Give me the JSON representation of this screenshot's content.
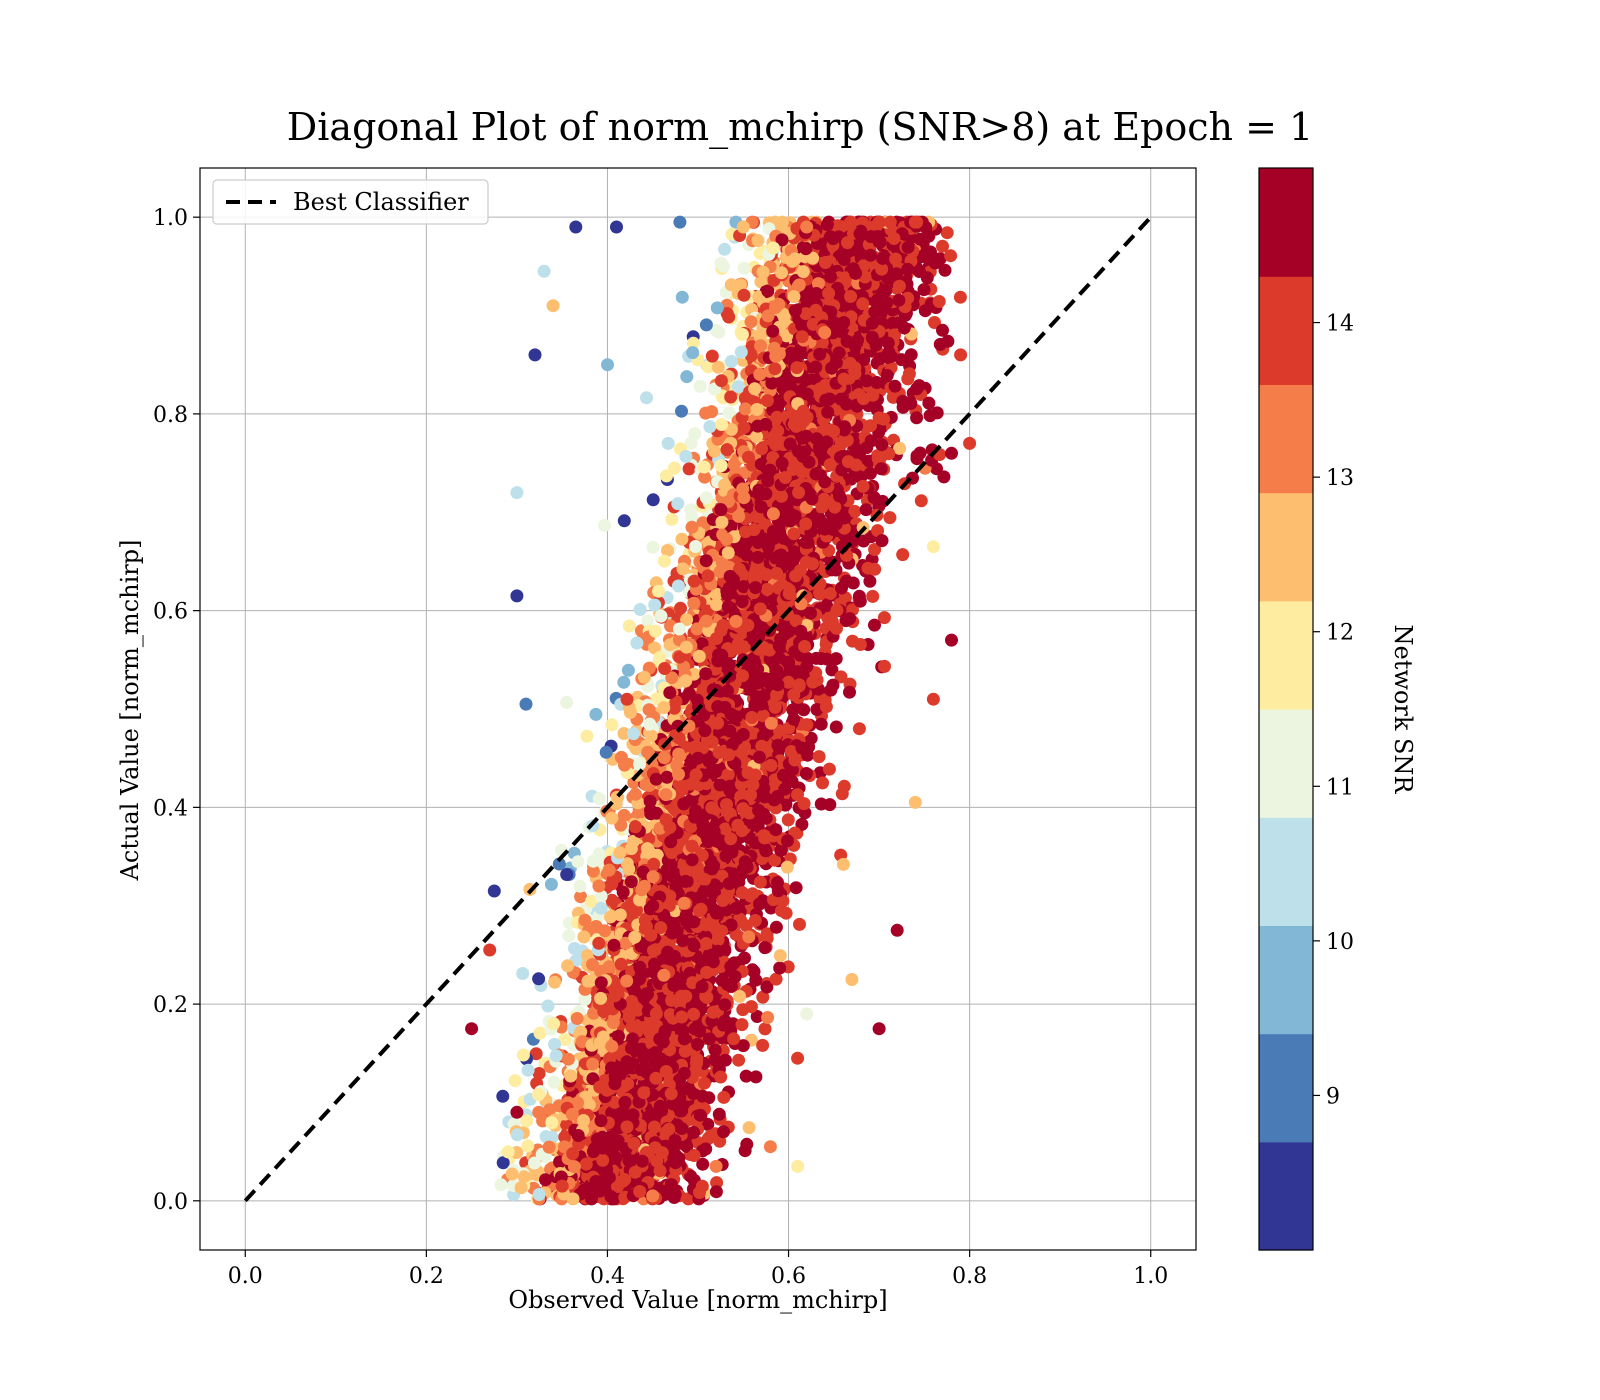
{
  "chart_data": {
    "type": "scatter",
    "title": "Diagonal Plot of norm_mchirp (SNR>8) at Epoch = 1",
    "xlabel": "Observed Value [norm_mchirp]",
    "ylabel": "Actual Value [norm_mchirp]",
    "xlim": [
      -0.05,
      1.05
    ],
    "ylim": [
      -0.05,
      1.05
    ],
    "xticks": [
      "0.0",
      "0.2",
      "0.4",
      "0.6",
      "0.8",
      "1.0"
    ],
    "yticks": [
      "0.0",
      "0.2",
      "0.4",
      "0.6",
      "0.8",
      "1.0"
    ],
    "grid": true,
    "legend": {
      "placement": "top-left",
      "entries": [
        {
          "label": "Best Classifier",
          "style": "dashed",
          "color": "#000000"
        }
      ]
    },
    "reference_line": {
      "x": [
        0.0,
        1.0
      ],
      "y": [
        0.0,
        1.0
      ],
      "style": "dashed",
      "color": "#000000"
    },
    "colorbar": {
      "label": "Network SNR",
      "range": [
        8,
        15
      ],
      "ticks": [
        "9",
        "10",
        "11",
        "12",
        "13",
        "14"
      ],
      "bins": [
        {
          "from": 8.0,
          "to": 8.7,
          "color": "#313695"
        },
        {
          "from": 8.7,
          "to": 9.4,
          "color": "#4a7bb7"
        },
        {
          "from": 9.4,
          "to": 10.1,
          "color": "#82b7d6"
        },
        {
          "from": 10.1,
          "to": 10.8,
          "color": "#bde0eb"
        },
        {
          "from": 10.8,
          "to": 11.5,
          "color": "#ecf5df"
        },
        {
          "from": 11.5,
          "to": 12.2,
          "color": "#feeca0"
        },
        {
          "from": 12.2,
          "to": 12.9,
          "color": "#fdbe70"
        },
        {
          "from": 12.9,
          "to": 13.6,
          "color": "#f57d4a"
        },
        {
          "from": 13.6,
          "to": 14.3,
          "color": "#dc3b2c"
        },
        {
          "from": 14.3,
          "to": 15.0,
          "color": "#a50026"
        }
      ]
    },
    "series": [
      {
        "points_estimated": [
          {
            "x": 0.25,
            "y": 0.175,
            "snr": 14.6
          },
          {
            "x": 0.275,
            "y": 0.315,
            "snr": 8.3
          },
          {
            "x": 0.3,
            "y": 0.72,
            "snr": 10.4
          },
          {
            "x": 0.3,
            "y": 0.615,
            "snr": 8.3
          },
          {
            "x": 0.31,
            "y": 0.505,
            "snr": 9.0
          },
          {
            "x": 0.32,
            "y": 0.86,
            "snr": 8.3
          },
          {
            "x": 0.33,
            "y": 0.945,
            "snr": 10.4
          },
          {
            "x": 0.34,
            "y": 0.91,
            "snr": 12.5
          },
          {
            "x": 0.365,
            "y": 0.99,
            "snr": 8.3
          },
          {
            "x": 0.41,
            "y": 0.99,
            "snr": 8.3
          },
          {
            "x": 0.48,
            "y": 0.995,
            "snr": 9.0
          },
          {
            "x": 0.55,
            "y": 0.99,
            "snr": 12.5
          },
          {
            "x": 0.62,
            "y": 0.99,
            "snr": 13.0
          },
          {
            "x": 0.7,
            "y": 0.975,
            "snr": 14.6
          },
          {
            "x": 0.75,
            "y": 0.96,
            "snr": 14.6
          },
          {
            "x": 0.77,
            "y": 0.885,
            "snr": 14.6
          },
          {
            "x": 0.79,
            "y": 0.86,
            "snr": 14.0
          },
          {
            "x": 0.8,
            "y": 0.77,
            "snr": 14.0
          },
          {
            "x": 0.78,
            "y": 0.76,
            "snr": 14.6
          },
          {
            "x": 0.76,
            "y": 0.665,
            "snr": 12.0
          },
          {
            "x": 0.78,
            "y": 0.57,
            "snr": 14.6
          },
          {
            "x": 0.76,
            "y": 0.51,
            "snr": 14.0
          },
          {
            "x": 0.74,
            "y": 0.405,
            "snr": 12.5
          },
          {
            "x": 0.72,
            "y": 0.275,
            "snr": 14.6
          },
          {
            "x": 0.7,
            "y": 0.175,
            "snr": 14.6
          },
          {
            "x": 0.67,
            "y": 0.225,
            "snr": 12.5
          },
          {
            "x": 0.62,
            "y": 0.19,
            "snr": 11.0
          },
          {
            "x": 0.61,
            "y": 0.145,
            "snr": 14.0
          },
          {
            "x": 0.58,
            "y": 0.055,
            "snr": 13.5
          },
          {
            "x": 0.61,
            "y": 0.035,
            "snr": 12.0
          },
          {
            "x": 0.52,
            "y": 0.035,
            "snr": 13.0
          },
          {
            "x": 0.45,
            "y": 0.005,
            "snr": 13.5
          },
          {
            "x": 0.35,
            "y": 0.015,
            "snr": 14.0
          },
          {
            "x": 0.3,
            "y": 0.09,
            "snr": 14.6
          },
          {
            "x": 0.27,
            "y": 0.255,
            "snr": 14.0
          },
          {
            "x": 0.5,
            "y": 0.45,
            "snr": 14.6
          },
          {
            "x": 0.55,
            "y": 0.55,
            "snr": 14.6
          },
          {
            "x": 0.45,
            "y": 0.3,
            "snr": 14.6
          },
          {
            "x": 0.6,
            "y": 0.7,
            "snr": 14.6
          },
          {
            "x": 0.4,
            "y": 0.85,
            "snr": 10.0
          }
        ]
      }
    ]
  }
}
